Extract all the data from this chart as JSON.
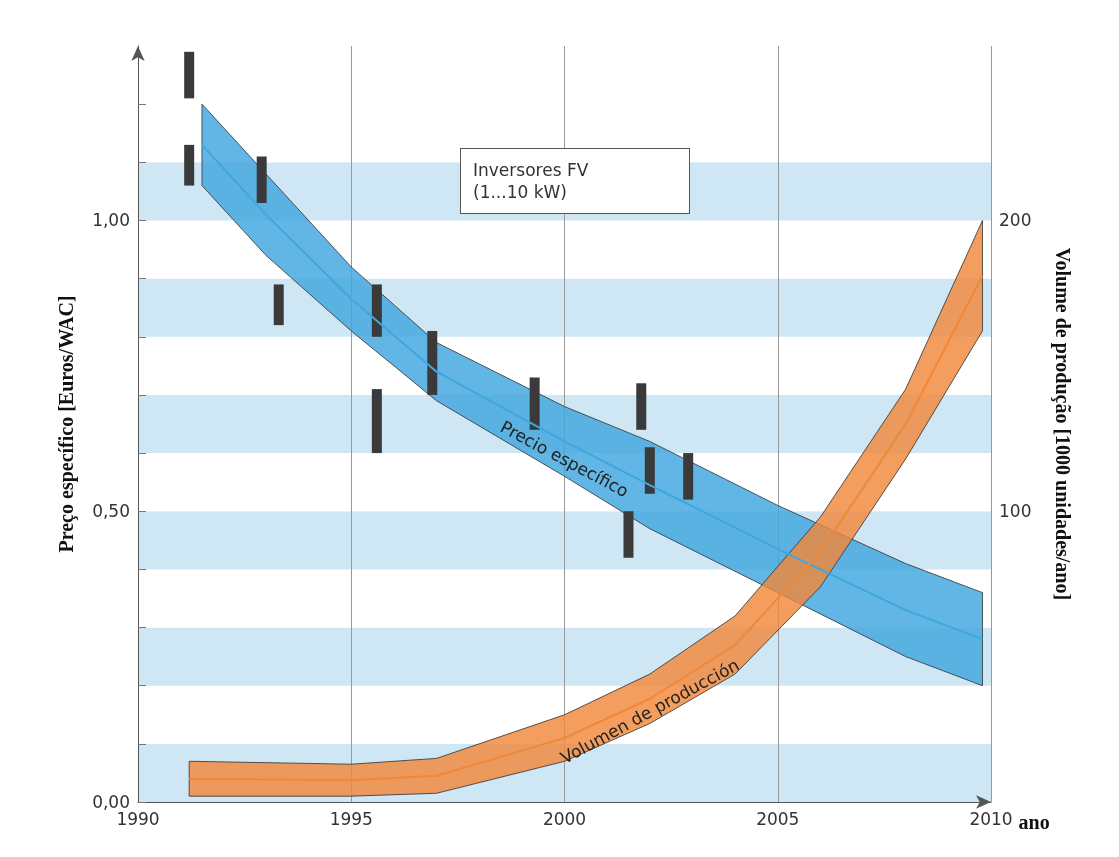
{
  "chart_data": {
    "type": "line",
    "xlabel": "ano",
    "ylabel": "Preço específico [Euros/WAC]",
    "y2label": "Volume de produção [1000 unidades/ano]",
    "annotations": [
      "Inversores FV\n(1...10 kW)"
    ],
    "xlim": [
      1990,
      2010
    ],
    "xticks": [
      1990,
      1995,
      2000,
      2005,
      2010
    ],
    "ylim": [
      0,
      1.3
    ],
    "yticks": [
      {
        "value": 0,
        "label": "0,00"
      },
      {
        "value": 0.1,
        "label": null
      },
      {
        "value": 0.2,
        "label": null
      },
      {
        "value": 0.3,
        "label": null
      },
      {
        "value": 0.4,
        "label": null
      },
      {
        "value": 0.5,
        "label": "0,50"
      },
      {
        "value": 0.6,
        "label": null
      },
      {
        "value": 0.7,
        "label": null
      },
      {
        "value": 0.8,
        "label": null
      },
      {
        "value": 0.9,
        "label": null
      },
      {
        "value": 1.0,
        "label": "1,00"
      },
      {
        "value": 1.1,
        "label": null
      },
      {
        "value": 1.2,
        "label": null
      }
    ],
    "y2lim": [
      0,
      260
    ],
    "y2ticks": [
      100,
      200
    ],
    "grid": true,
    "legend": false,
    "series": [
      {
        "name": "Precio específico",
        "color": "#3fa6df",
        "x": [
          1991.5,
          1993,
          1995,
          1997,
          2000,
          2002,
          2005,
          2008,
          2009.8
        ],
        "values": [
          1.13,
          1.01,
          0.865,
          0.74,
          0.62,
          0.545,
          0.435,
          0.33,
          0.28
        ],
        "lower": [
          1.06,
          0.94,
          0.81,
          0.69,
          0.56,
          0.47,
          0.36,
          0.25,
          0.2
        ],
        "upper": [
          1.2,
          1.08,
          0.92,
          0.79,
          0.68,
          0.62,
          0.51,
          0.41,
          0.36
        ]
      },
      {
        "name": "Volumen de producción",
        "axis": "y2",
        "color": "#f0883a",
        "x": [
          1991.2,
          1995,
          1997,
          2000,
          2002,
          2004,
          2006,
          2008,
          2009.8
        ],
        "values": [
          8,
          7.5,
          9,
          22,
          35.5,
          54,
          86,
          130,
          181
        ],
        "lower": [
          2,
          2,
          3,
          14,
          27,
          44,
          74,
          118,
          162
        ],
        "upper": [
          14,
          13,
          15,
          30,
          44,
          64,
          98,
          142,
          200
        ]
      },
      {
        "type": "bar",
        "color": "#3a3a3a",
        "x": [
          1991.2,
          1992.9,
          1993.3,
          1995.6,
          1996.9,
          1999.3,
          2001.5,
          2001.8,
          2002.0,
          2002.9
        ],
        "base": [
          1.21,
          1.03,
          0.82,
          0.8,
          0.7,
          0.64,
          0.42,
          0.64,
          0.53,
          0.52
        ],
        "values": [
          0.08,
          0.08,
          0.07,
          0.09,
          0.11,
          0.09,
          0.08,
          0.08,
          0.08,
          0.08
        ]
      },
      {
        "type": "bar",
        "color": "#3a3a3a",
        "x": [
          1991.2,
          1995.6
        ],
        "base": [
          1.06,
          0.6
        ],
        "values": [
          0.07,
          0.11
        ]
      }
    ]
  }
}
